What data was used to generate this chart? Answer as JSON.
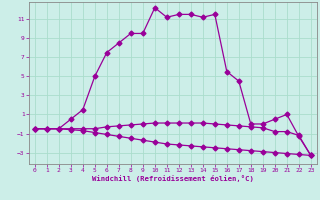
{
  "xlabel": "Windchill (Refroidissement éolien,°C)",
  "background_color": "#cceee8",
  "grid_color": "#aaddcc",
  "line_color": "#990099",
  "spine_color": "#888888",
  "xlim": [
    -0.5,
    23.5
  ],
  "ylim": [
    -4.2,
    12.8
  ],
  "xticks": [
    0,
    1,
    2,
    3,
    4,
    5,
    6,
    7,
    8,
    9,
    10,
    11,
    12,
    13,
    14,
    15,
    16,
    17,
    18,
    19,
    20,
    21,
    22,
    23
  ],
  "yticks": [
    -3,
    -1,
    1,
    3,
    5,
    7,
    9,
    11
  ],
  "series3_x": [
    0,
    1,
    2,
    3,
    4,
    5,
    6,
    7,
    8,
    9,
    10,
    11,
    12,
    13,
    14,
    15,
    16,
    17,
    18,
    19,
    20,
    21,
    22,
    23
  ],
  "series3_y": [
    -0.5,
    -0.5,
    -0.5,
    0.5,
    1.5,
    5.0,
    7.5,
    8.5,
    9.5,
    9.5,
    12.2,
    11.2,
    11.5,
    11.5,
    11.2,
    11.5,
    5.5,
    4.5,
    0.0,
    0.0,
    0.5,
    1.0,
    -1.3,
    -3.3
  ],
  "series2_x": [
    0,
    1,
    2,
    3,
    4,
    5,
    6,
    7,
    8,
    9,
    10,
    11,
    12,
    13,
    14,
    15,
    16,
    17,
    18,
    19,
    20,
    21,
    22,
    23
  ],
  "series2_y": [
    -0.5,
    -0.5,
    -0.5,
    -0.5,
    -0.5,
    -0.5,
    -0.3,
    -0.2,
    -0.1,
    0.0,
    0.1,
    0.1,
    0.1,
    0.1,
    0.1,
    0.0,
    -0.1,
    -0.2,
    -0.3,
    -0.4,
    -0.8,
    -0.8,
    -1.2,
    -3.3
  ],
  "series1_x": [
    0,
    1,
    2,
    3,
    4,
    5,
    6,
    7,
    8,
    9,
    10,
    11,
    12,
    13,
    14,
    15,
    16,
    17,
    18,
    19,
    20,
    21,
    22,
    23
  ],
  "series1_y": [
    -0.5,
    -0.5,
    -0.5,
    -0.6,
    -0.7,
    -0.9,
    -1.1,
    -1.3,
    -1.5,
    -1.7,
    -1.9,
    -2.1,
    -2.2,
    -2.3,
    -2.4,
    -2.5,
    -2.6,
    -2.7,
    -2.8,
    -2.9,
    -3.0,
    -3.1,
    -3.2,
    -3.3
  ],
  "markersize": 2.5,
  "linewidth": 0.9
}
